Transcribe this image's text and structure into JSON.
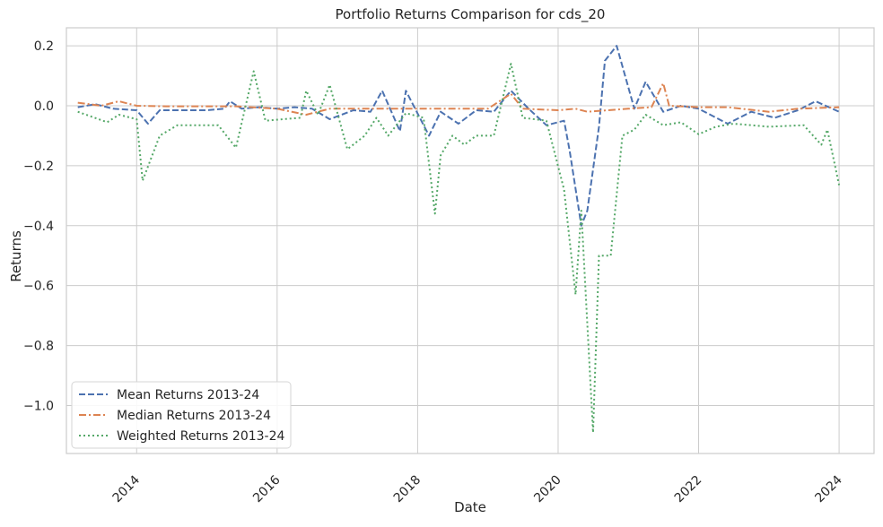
{
  "chart_data": {
    "type": "line",
    "title": "Portfolio Returns Comparison for cds_20",
    "xlabel": "Date",
    "ylabel": "Returns",
    "xlim": [
      "2013-01-01",
      "2024-07-01"
    ],
    "ylim": [
      -1.16,
      0.26
    ],
    "x_ticks": [
      "2014",
      "2016",
      "2018",
      "2020",
      "2022",
      "2024"
    ],
    "y_ticks": [
      "0.2",
      "0.0",
      "−0.2",
      "−0.4",
      "−0.6",
      "−0.8",
      "−1.0"
    ],
    "grid": true,
    "legend_position": "lower-left",
    "series": [
      {
        "name": "Mean Returns 2013-24",
        "color": "#4c72b0",
        "style": "dashed",
        "points": [
          [
            "2013-03-01",
            -0.005
          ],
          [
            "2013-06-01",
            0.005
          ],
          [
            "2013-09-01",
            -0.01
          ],
          [
            "2014-01-01",
            -0.015
          ],
          [
            "2014-03-01",
            -0.06
          ],
          [
            "2014-05-01",
            -0.015
          ],
          [
            "2015-01-01",
            -0.015
          ],
          [
            "2015-04-01",
            -0.01
          ],
          [
            "2015-05-01",
            0.015
          ],
          [
            "2015-07-01",
            -0.01
          ],
          [
            "2015-10-01",
            -0.005
          ],
          [
            "2016-01-01",
            -0.01
          ],
          [
            "2016-04-01",
            -0.005
          ],
          [
            "2016-07-01",
            -0.01
          ],
          [
            "2016-10-01",
            -0.045
          ],
          [
            "2017-02-01",
            -0.015
          ],
          [
            "2017-05-01",
            -0.02
          ],
          [
            "2017-07-01",
            0.05
          ],
          [
            "2017-10-01",
            -0.085
          ],
          [
            "2017-11-01",
            0.05
          ],
          [
            "2018-03-01",
            -0.1
          ],
          [
            "2018-05-01",
            -0.02
          ],
          [
            "2018-08-01",
            -0.06
          ],
          [
            "2018-11-01",
            -0.015
          ],
          [
            "2019-02-01",
            -0.02
          ],
          [
            "2019-05-01",
            0.05
          ],
          [
            "2019-08-01",
            -0.01
          ],
          [
            "2019-11-01",
            -0.065
          ],
          [
            "2020-02-01",
            -0.05
          ],
          [
            "2020-03-01",
            -0.15
          ],
          [
            "2020-05-01",
            -0.4
          ],
          [
            "2020-06-01",
            -0.35
          ],
          [
            "2020-08-01",
            -0.07
          ],
          [
            "2020-09-01",
            0.15
          ],
          [
            "2020-11-01",
            0.2
          ],
          [
            "2021-02-01",
            -0.01
          ],
          [
            "2021-04-01",
            0.08
          ],
          [
            "2021-07-01",
            -0.02
          ],
          [
            "2021-10-01",
            0.0
          ],
          [
            "2022-01-01",
            -0.01
          ],
          [
            "2022-06-01",
            -0.06
          ],
          [
            "2022-10-01",
            -0.02
          ],
          [
            "2023-02-01",
            -0.04
          ],
          [
            "2023-06-01",
            -0.015
          ],
          [
            "2023-09-01",
            0.015
          ],
          [
            "2024-01-01",
            -0.02
          ]
        ]
      },
      {
        "name": "Median Returns 2013-24",
        "color": "#dd8452",
        "style": "dashdot",
        "points": [
          [
            "2013-03-01",
            0.01
          ],
          [
            "2013-07-01",
            0.0
          ],
          [
            "2013-10-01",
            0.015
          ],
          [
            "2014-01-01",
            0.0
          ],
          [
            "2014-06-01",
            -0.002
          ],
          [
            "2015-01-01",
            -0.002
          ],
          [
            "2015-06-01",
            -0.002
          ],
          [
            "2016-01-01",
            -0.01
          ],
          [
            "2016-06-01",
            -0.03
          ],
          [
            "2016-10-01",
            -0.01
          ],
          [
            "2017-06-01",
            -0.01
          ],
          [
            "2018-01-01",
            -0.01
          ],
          [
            "2018-06-01",
            -0.01
          ],
          [
            "2019-01-01",
            -0.01
          ],
          [
            "2019-05-01",
            0.04
          ],
          [
            "2019-07-01",
            -0.01
          ],
          [
            "2020-01-01",
            -0.015
          ],
          [
            "2020-04-01",
            -0.01
          ],
          [
            "2020-06-01",
            -0.02
          ],
          [
            "2021-01-01",
            -0.01
          ],
          [
            "2021-05-01",
            -0.005
          ],
          [
            "2021-07-01",
            0.075
          ],
          [
            "2021-08-01",
            0.0
          ],
          [
            "2022-01-01",
            -0.005
          ],
          [
            "2022-06-01",
            -0.005
          ],
          [
            "2023-01-01",
            -0.02
          ],
          [
            "2023-06-01",
            -0.01
          ],
          [
            "2024-01-01",
            -0.005
          ]
        ]
      },
      {
        "name": "Weighted Returns 2013-24",
        "color": "#55a868",
        "style": "dotted",
        "points": [
          [
            "2013-03-01",
            -0.02
          ],
          [
            "2013-08-01",
            -0.055
          ],
          [
            "2013-10-01",
            -0.03
          ],
          [
            "2014-01-01",
            -0.045
          ],
          [
            "2014-02-01",
            -0.25
          ],
          [
            "2014-05-01",
            -0.1
          ],
          [
            "2014-08-01",
            -0.065
          ],
          [
            "2015-03-01",
            -0.065
          ],
          [
            "2015-06-01",
            -0.14
          ],
          [
            "2015-09-01",
            0.115
          ],
          [
            "2015-11-01",
            -0.05
          ],
          [
            "2016-02-01",
            -0.045
          ],
          [
            "2016-05-01",
            -0.04
          ],
          [
            "2016-06-01",
            0.05
          ],
          [
            "2016-08-01",
            -0.03
          ],
          [
            "2016-10-01",
            0.07
          ],
          [
            "2017-01-01",
            -0.145
          ],
          [
            "2017-04-01",
            -0.1
          ],
          [
            "2017-06-01",
            -0.04
          ],
          [
            "2017-08-01",
            -0.1
          ],
          [
            "2017-11-01",
            -0.025
          ],
          [
            "2018-02-01",
            -0.04
          ],
          [
            "2018-04-01",
            -0.36
          ],
          [
            "2018-05-01",
            -0.165
          ],
          [
            "2018-07-01",
            -0.1
          ],
          [
            "2018-09-01",
            -0.13
          ],
          [
            "2018-11-01",
            -0.1
          ],
          [
            "2019-02-01",
            -0.1
          ],
          [
            "2019-05-01",
            0.14
          ],
          [
            "2019-07-01",
            -0.04
          ],
          [
            "2019-11-01",
            -0.05
          ],
          [
            "2020-02-01",
            -0.28
          ],
          [
            "2020-04-01",
            -0.63
          ],
          [
            "2020-05-01",
            -0.35
          ],
          [
            "2020-07-01",
            -1.09
          ],
          [
            "2020-08-01",
            -0.5
          ],
          [
            "2020-10-01",
            -0.5
          ],
          [
            "2020-12-01",
            -0.1
          ],
          [
            "2021-02-01",
            -0.08
          ],
          [
            "2021-04-01",
            -0.03
          ],
          [
            "2021-07-01",
            -0.065
          ],
          [
            "2021-10-01",
            -0.055
          ],
          [
            "2022-01-01",
            -0.095
          ],
          [
            "2022-04-01",
            -0.07
          ],
          [
            "2022-07-01",
            -0.06
          ],
          [
            "2023-01-01",
            -0.07
          ],
          [
            "2023-07-01",
            -0.065
          ],
          [
            "2023-10-01",
            -0.13
          ],
          [
            "2023-11-01",
            -0.08
          ],
          [
            "2024-01-01",
            -0.265
          ]
        ]
      }
    ]
  }
}
